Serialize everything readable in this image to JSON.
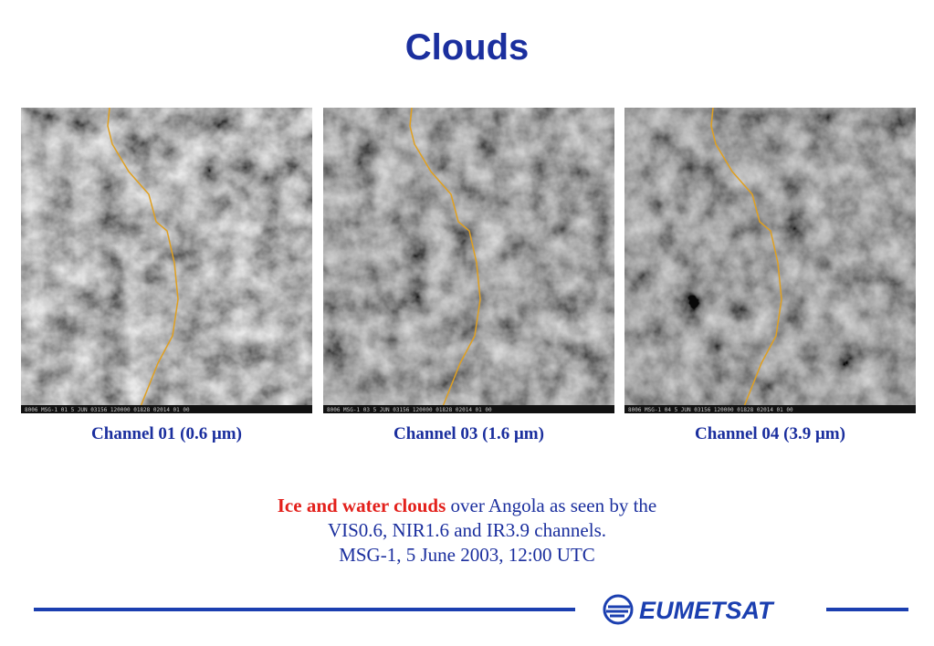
{
  "title": "Clouds",
  "panels": [
    {
      "caption": "Channel 01 (0.6 μm)",
      "strip": "8006 MSG-1    01  5 JUN 03156 120000 01828 02014 01 00"
    },
    {
      "caption": "Channel 03 (1.6 μm)",
      "strip": "8006 MSG-1    03  5 JUN 03156 120000 01828 02014 01 00"
    },
    {
      "caption": "Channel 04 (3.9 μm)",
      "strip": "8006 MSG-1    04  5 JUN 03156 120000 01828 02014 01 00"
    }
  ],
  "description": {
    "highlight": "Ice and water clouds",
    "lines": [
      " over Angola as seen by the",
      "VIS0.6, NIR1.6 and IR3.9 channels.",
      "MSG-1, 5 June 2003, 12:00 UTC"
    ]
  },
  "logo": "EUMETSAT"
}
